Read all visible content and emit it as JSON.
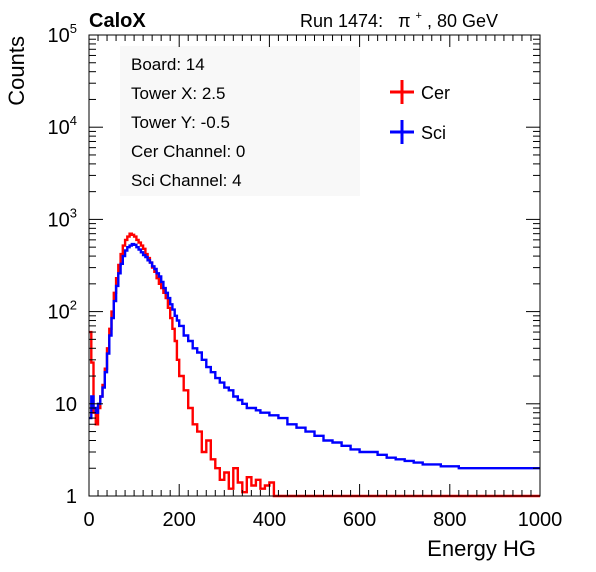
{
  "header": {
    "experiment": "CaloX",
    "run_prefix": "Run 1474:",
    "particle": "π",
    "particle_charge": "+",
    "energy": ", 80 GeV"
  },
  "info_box": {
    "lines": [
      "Board: 14",
      "Tower X: 2.5",
      "Tower Y: -0.5",
      "Cer Channel: 0",
      "Sci Channel: 4"
    ]
  },
  "colors": {
    "cer": "#ff0000",
    "sci": "#0000ff",
    "axis": "#000000"
  },
  "chart_data": {
    "type": "line",
    "subtype": "step-histogram",
    "title": "",
    "xlabel": "Energy HG",
    "ylabel": "Counts",
    "xlim": [
      0,
      1000
    ],
    "ylim": [
      1,
      100000
    ],
    "yscale": "log",
    "grid": false,
    "legend_position": "top-right",
    "x_ticks": [
      0,
      200,
      400,
      600,
      800,
      1000
    ],
    "x_tick_labels": [
      "0",
      "200",
      "400",
      "600",
      "800",
      "1000"
    ],
    "y_ticks": [
      1,
      10,
      100,
      1000,
      10000,
      100000
    ],
    "y_tick_labels": [
      {
        "base": "1",
        "exp": ""
      },
      {
        "base": "10",
        "exp": ""
      },
      {
        "base": "10",
        "exp": "2"
      },
      {
        "base": "10",
        "exp": "3"
      },
      {
        "base": "10",
        "exp": "4"
      },
      {
        "base": "10",
        "exp": "5"
      }
    ],
    "series": [
      {
        "name": "Cer",
        "color": "#ff0000",
        "x": [
          0,
          5,
          10,
          15,
          20,
          25,
          30,
          35,
          40,
          45,
          50,
          55,
          60,
          65,
          70,
          75,
          80,
          85,
          90,
          95,
          100,
          105,
          110,
          115,
          120,
          125,
          130,
          135,
          140,
          145,
          150,
          155,
          160,
          165,
          170,
          175,
          180,
          185,
          190,
          195,
          200,
          210,
          220,
          230,
          240,
          250,
          260,
          270,
          280,
          290,
          300,
          310,
          320,
          330,
          340,
          350,
          360,
          370,
          380,
          390,
          400,
          410,
          420,
          430,
          440,
          450,
          460,
          470,
          480,
          490,
          500,
          510,
          520,
          530,
          540,
          550,
          560,
          570,
          580,
          590,
          600,
          610,
          620,
          630,
          640,
          650,
          660,
          670,
          680,
          690,
          700
        ],
        "y": [
          60,
          28,
          8,
          6,
          9,
          12,
          16,
          24,
          40,
          65,
          100,
          160,
          230,
          320,
          420,
          520,
          600,
          650,
          700,
          680,
          650,
          600,
          560,
          520,
          480,
          420,
          380,
          340,
          300,
          270,
          230,
          200,
          180,
          160,
          140,
          110,
          85,
          65,
          48,
          30,
          20,
          14,
          9,
          6,
          5,
          3,
          4,
          2.5,
          2,
          1.5,
          1.8,
          1.2,
          2,
          1.4,
          1.1,
          1.6,
          1.3,
          1.5,
          1.2,
          1.3,
          1.4,
          1,
          1,
          1,
          1,
          1,
          1,
          1,
          1,
          1,
          1,
          1,
          1,
          1,
          1,
          1,
          1,
          1,
          1,
          1,
          1,
          1,
          1,
          1,
          1,
          1,
          1,
          1,
          1,
          1,
          1
        ]
      },
      {
        "name": "Sci",
        "color": "#0000ff",
        "x": [
          0,
          5,
          10,
          15,
          20,
          25,
          30,
          35,
          40,
          45,
          50,
          55,
          60,
          65,
          70,
          75,
          80,
          85,
          90,
          95,
          100,
          105,
          110,
          115,
          120,
          125,
          130,
          135,
          140,
          145,
          150,
          155,
          160,
          165,
          170,
          175,
          180,
          185,
          190,
          195,
          200,
          210,
          220,
          230,
          240,
          250,
          260,
          270,
          280,
          290,
          300,
          310,
          320,
          330,
          340,
          350,
          360,
          370,
          380,
          390,
          400,
          420,
          440,
          460,
          480,
          500,
          520,
          540,
          560,
          580,
          600,
          620,
          640,
          660,
          680,
          700,
          720,
          740,
          760,
          780,
          800,
          820,
          840,
          860,
          880,
          900,
          920,
          940,
          960,
          980,
          1000
        ],
        "y": [
          7,
          12,
          9,
          8,
          10,
          12,
          15,
          22,
          35,
          55,
          85,
          130,
          190,
          260,
          330,
          400,
          460,
          500,
          520,
          540,
          530,
          500,
          470,
          440,
          410,
          390,
          360,
          340,
          310,
          290,
          260,
          240,
          210,
          180,
          160,
          140,
          120,
          105,
          90,
          80,
          70,
          55,
          48,
          40,
          36,
          30,
          25,
          22,
          19,
          17,
          15,
          14,
          12,
          11,
          10,
          9,
          9,
          8.5,
          8,
          8,
          7.5,
          7,
          6,
          5.5,
          5,
          4.5,
          4,
          3.8,
          3.5,
          3.2,
          3,
          3,
          2.8,
          2.6,
          2.5,
          2.4,
          2.3,
          2.2,
          2.2,
          2.1,
          2.1,
          2,
          2,
          2,
          2,
          2,
          2,
          2,
          2,
          2,
          2
        ]
      }
    ]
  }
}
